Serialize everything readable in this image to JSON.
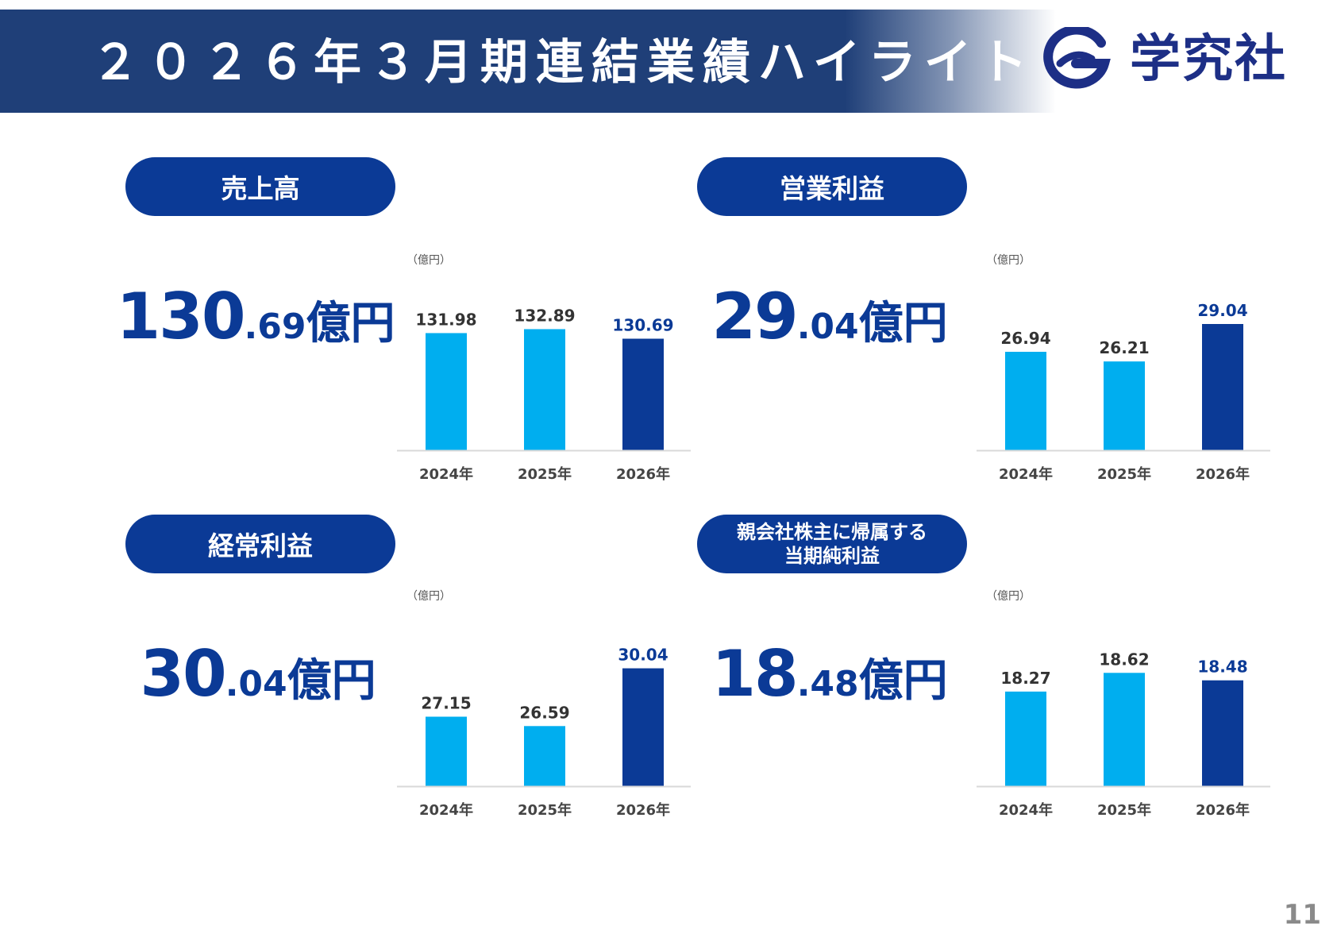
{
  "header": {
    "title": "２０２６年３月期連結業績ハイライト",
    "company": "学究社",
    "logo_icon": "g-swirl-logo-icon"
  },
  "colors": {
    "header_navy": "#1f3f78",
    "pill_blue": "#0b3a96",
    "bar_past": "#00aeef",
    "bar_current": "#0b3a96",
    "label_past": "#333333",
    "label_current": "#0b3a96"
  },
  "sections": {
    "sales": {
      "pill_line1": "売上高",
      "kpi_int": "130",
      "kpi_dot": ".",
      "kpi_dec": "69",
      "kpi_unit": "億円"
    },
    "operating": {
      "pill_line1": "営業利益",
      "kpi_int": "29",
      "kpi_dot": ".",
      "kpi_dec": "04",
      "kpi_unit": "億円"
    },
    "ordinary": {
      "pill_line1": "経常利益",
      "kpi_int": "30",
      "kpi_dot": ".",
      "kpi_dec": "04",
      "kpi_unit": "億円"
    },
    "net": {
      "pill_line1": "親会社株主に帰属する",
      "pill_line2": "当期純利益",
      "kpi_int": "18",
      "kpi_dot": ".",
      "kpi_dec": "48",
      "kpi_unit": "億円"
    }
  },
  "chart_data": [
    {
      "type": "bar",
      "unit_label": "（億円）",
      "categories": [
        "2024年",
        "2025年",
        "2026年"
      ],
      "values": [
        131.98,
        132.89,
        130.69
      ],
      "labels": [
        "131.98",
        "132.89",
        "130.69"
      ],
      "highlight_index": 2,
      "ylim": [
        105,
        137
      ]
    },
    {
      "type": "bar",
      "unit_label": "（億円）",
      "categories": [
        "2024年",
        "2025年",
        "2026年"
      ],
      "values": [
        26.94,
        26.21,
        29.04
      ],
      "labels": [
        "26.94",
        "26.21",
        "29.04"
      ],
      "highlight_index": 2,
      "ylim": [
        19.5,
        30
      ]
    },
    {
      "type": "bar",
      "unit_label": "（億円）",
      "categories": [
        "2024年",
        "2025年",
        "2026年"
      ],
      "values": [
        27.15,
        26.59,
        30.04
      ],
      "labels": [
        "27.15",
        "26.59",
        "30.04"
      ],
      "highlight_index": 2,
      "ylim": [
        23,
        31.3
      ]
    },
    {
      "type": "bar",
      "unit_label": "（億円）",
      "categories": [
        "2024年",
        "2025年",
        "2026年"
      ],
      "values": [
        18.27,
        18.62,
        18.48
      ],
      "labels": [
        "18.27",
        "18.62",
        "18.48"
      ],
      "highlight_index": 2,
      "ylim": [
        16.5,
        19.1
      ]
    }
  ],
  "footer": {
    "page_number": "11"
  }
}
